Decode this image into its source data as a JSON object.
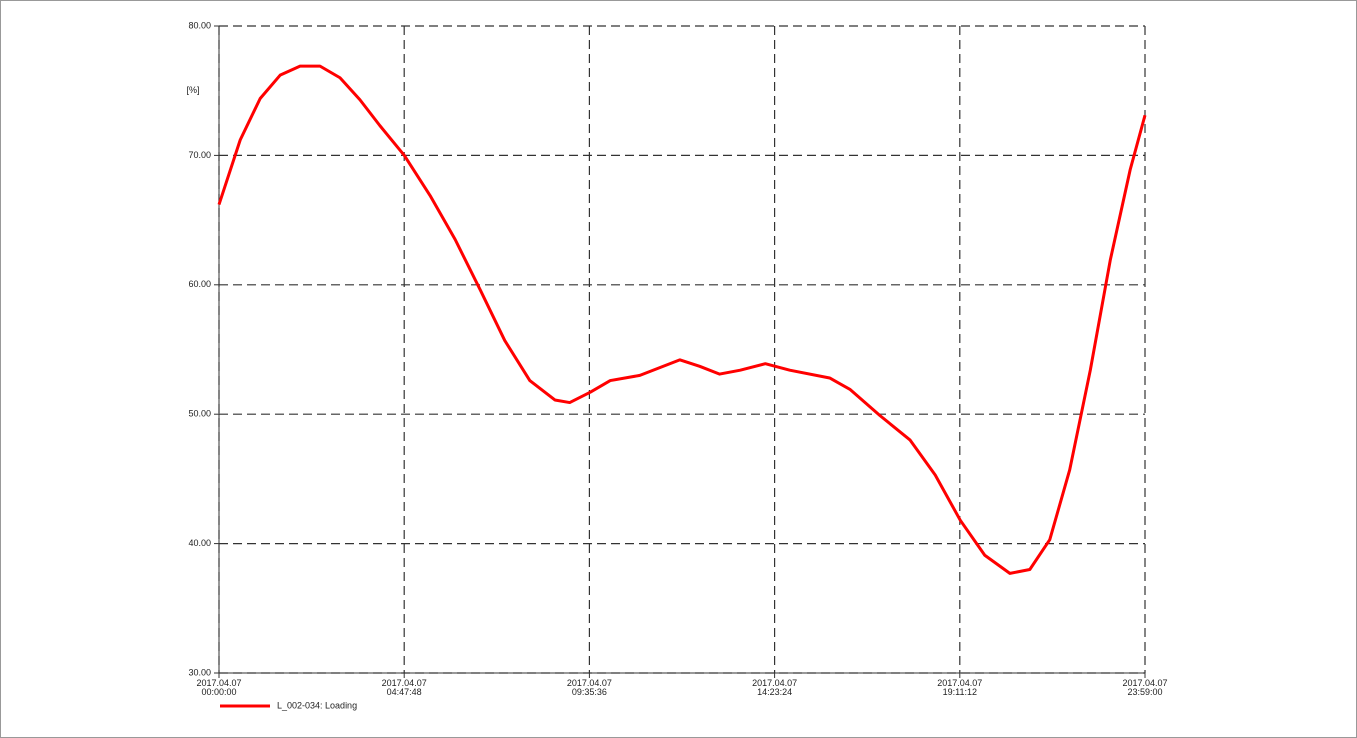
{
  "chart_data": {
    "type": "line",
    "y_label": "[%]",
    "x": [
      0,
      33,
      64,
      95,
      126,
      157,
      188,
      219,
      250,
      288,
      328,
      367,
      406,
      444,
      483,
      522,
      545,
      577,
      608,
      654,
      685,
      716,
      747,
      778,
      810,
      849,
      887,
      949,
      981,
      1027,
      1074,
      1113,
      1152,
      1190,
      1229,
      1260,
      1291,
      1322,
      1354,
      1385,
      1416,
      1439
    ],
    "series": [
      {
        "name": "L_002-034: Loading",
        "color": "#ff0000",
        "values": [
          66.2,
          71.2,
          74.4,
          76.2,
          76.9,
          76.9,
          76.0,
          74.3,
          72.3,
          70.0,
          66.9,
          63.5,
          59.6,
          55.7,
          52.6,
          51.1,
          50.9,
          51.7,
          52.6,
          53.0,
          53.6,
          54.2,
          53.7,
          53.1,
          53.4,
          53.9,
          53.4,
          52.8,
          51.9,
          49.9,
          48.0,
          45.3,
          41.8,
          39.1,
          37.7,
          38.0,
          40.3,
          45.7,
          53.4,
          61.9,
          68.9,
          73.1
        ]
      }
    ],
    "xlim": [
      0,
      1439
    ],
    "xticks": [
      {
        "value": 0,
        "label": "2017.04.07\n00:00:00"
      },
      {
        "value": 287.8,
        "label": "2017.04.07\n04:47:48"
      },
      {
        "value": 575.6,
        "label": "2017.04.07\n09:35:36"
      },
      {
        "value": 863.4,
        "label": "2017.04.07\n14:23:24"
      },
      {
        "value": 1151.2,
        "label": "2017.04.07\n19:11:12"
      },
      {
        "value": 1439,
        "label": "2017.04.07\n23:59:00"
      }
    ],
    "ylim": [
      30,
      80
    ],
    "yticks": [
      {
        "value": 30,
        "label": "30.00"
      },
      {
        "value": 40,
        "label": "40.00"
      },
      {
        "value": 50,
        "label": "50.00"
      },
      {
        "value": 60,
        "label": "60.00"
      },
      {
        "value": 70,
        "label": "70.00"
      },
      {
        "value": 80,
        "label": "80.00"
      }
    ],
    "grid": true
  }
}
